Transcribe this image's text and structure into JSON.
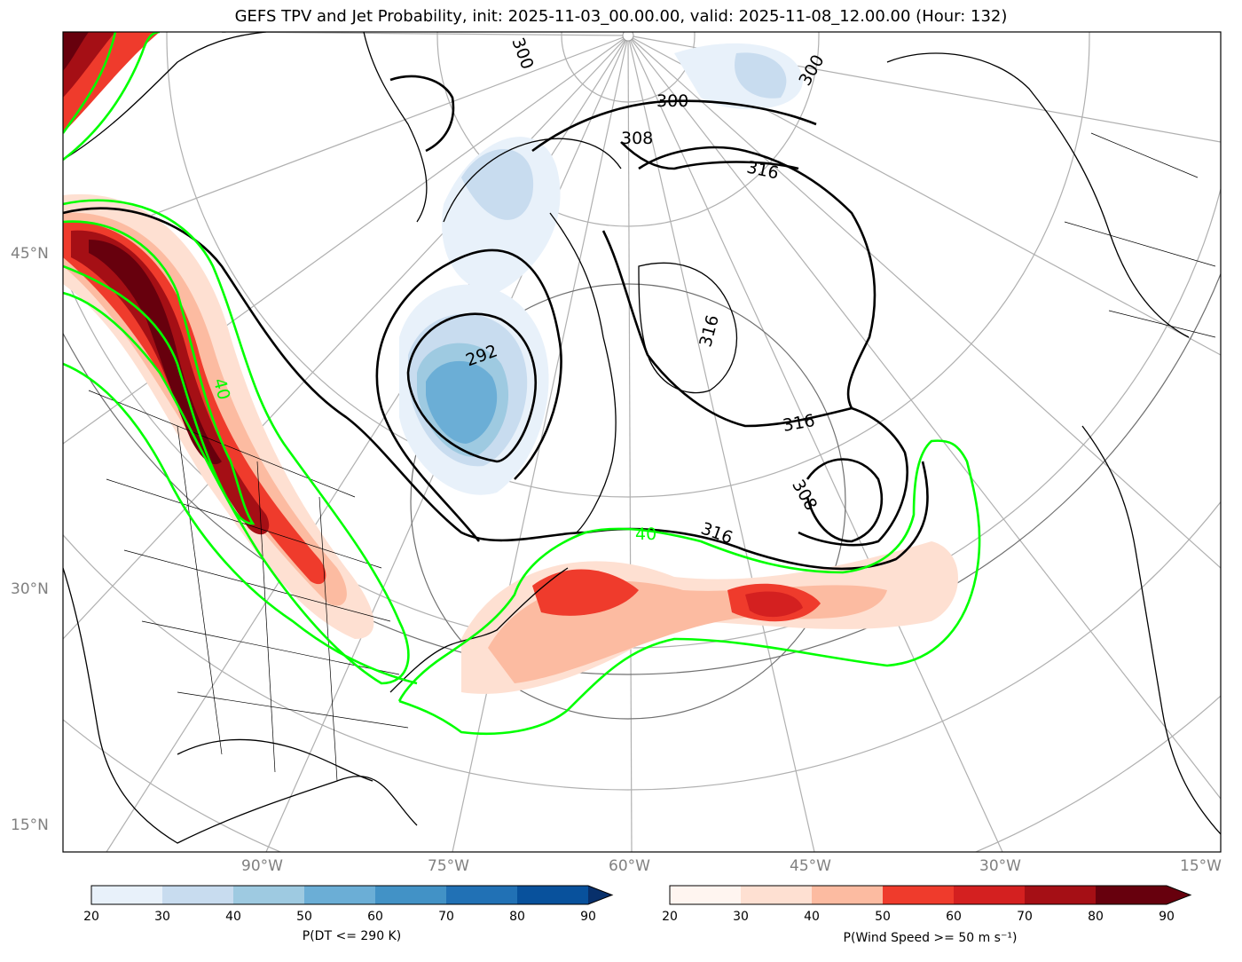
{
  "title": "GEFS TPV and Jet Probability, init: 2025-11-03_00.00.00, valid: 2025-11-08_12.00.00 (Hour: 132)",
  "lat_labels": [
    "45°N",
    "30°N",
    "15°N"
  ],
  "lon_labels": [
    "90°W",
    "75°W",
    "60°W",
    "45°W",
    "30°W",
    "15°W"
  ],
  "contour_labels": {
    "theta": [
      "300",
      "300",
      "300",
      "308",
      "316",
      "316",
      "316",
      "308",
      "292",
      "316"
    ],
    "jet": [
      "40",
      "40"
    ]
  },
  "colorbars": {
    "blue": {
      "label": "P(DT <= 290 K)",
      "ticks": [
        "20",
        "30",
        "40",
        "50",
        "60",
        "70",
        "80",
        "90"
      ],
      "colors": [
        "#e8f1fa",
        "#c8dcef",
        "#9ecae1",
        "#6baed6",
        "#4292c6",
        "#2171b5",
        "#08519c"
      ]
    },
    "red": {
      "label": "P(Wind Speed >= 50 m s⁻¹)",
      "ticks": [
        "20",
        "30",
        "40",
        "50",
        "60",
        "70",
        "80",
        "90"
      ],
      "colors": [
        "#fff5f0",
        "#fee0d2",
        "#fcbba1",
        "#ef3b2c",
        "#d42020",
        "#a50f15",
        "#67000d"
      ]
    }
  },
  "colors": {
    "jet_contour": "#00ff00",
    "theta_contour": "#000000",
    "graticule": "#b0b0b0"
  }
}
